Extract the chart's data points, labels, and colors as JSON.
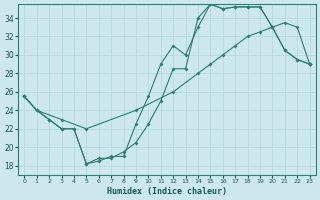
{
  "xlabel": "Humidex (Indice chaleur)",
  "bg_color": "#cce8ee",
  "grid_color": "#b0d8de",
  "line_color": "#2e7d6e",
  "xlim": [
    -0.5,
    23.5
  ],
  "ylim": [
    17,
    35.5
  ],
  "xticks": [
    0,
    1,
    2,
    3,
    4,
    5,
    6,
    7,
    8,
    9,
    10,
    11,
    12,
    13,
    14,
    15,
    16,
    17,
    18,
    19,
    20,
    21,
    22,
    23
  ],
  "yticks": [
    18,
    20,
    22,
    24,
    26,
    28,
    30,
    32,
    34
  ],
  "line1_x": [
    0,
    1,
    2,
    3,
    4,
    5,
    6,
    7,
    8,
    9,
    10,
    11,
    12,
    13,
    14,
    15,
    16,
    17,
    18,
    19,
    20,
    21,
    22,
    23
  ],
  "line1_y": [
    25.5,
    24.0,
    23.0,
    22.0,
    22.0,
    18.2,
    18.5,
    19.0,
    19.0,
    22.5,
    25.5,
    29.0,
    31.0,
    30.0,
    33.0,
    35.5,
    35.0,
    35.2,
    35.2,
    35.2,
    33.0,
    30.5,
    29.5,
    29.0
  ],
  "line2_x": [
    0,
    1,
    2,
    3,
    4,
    5,
    6,
    7,
    8,
    9,
    10,
    11,
    12,
    13,
    14,
    15,
    16,
    17,
    18,
    19,
    20,
    21,
    22,
    23
  ],
  "line2_y": [
    25.5,
    24.0,
    23.0,
    22.0,
    22.0,
    18.2,
    18.8,
    18.8,
    19.5,
    20.5,
    22.5,
    25.0,
    28.5,
    28.5,
    34.0,
    35.5,
    35.0,
    35.2,
    35.2,
    35.2,
    33.0,
    30.5,
    29.5,
    29.0
  ],
  "line3_x": [
    0,
    1,
    3,
    5,
    9,
    12,
    14,
    15,
    16,
    17,
    18,
    19,
    20,
    21,
    22,
    23
  ],
  "line3_y": [
    25.5,
    24.0,
    23.0,
    22.0,
    24.0,
    26.0,
    28.0,
    29.0,
    30.0,
    31.0,
    32.0,
    32.5,
    33.0,
    33.5,
    33.0,
    29.0
  ]
}
